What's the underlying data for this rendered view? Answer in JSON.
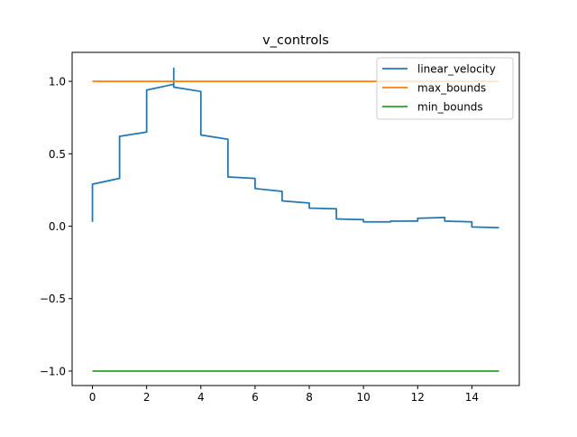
{
  "chart_data": {
    "type": "line",
    "title": "v_controls",
    "xlabel": "",
    "ylabel": "",
    "xlim": [
      -0.75,
      15.75
    ],
    "ylim": [
      -1.1,
      1.2
    ],
    "xticks": [
      0,
      2,
      4,
      6,
      8,
      10,
      12,
      14
    ],
    "yticks": [
      -1.0,
      -0.5,
      0.0,
      0.5,
      1.0
    ],
    "xtick_labels": [
      "0",
      "2",
      "4",
      "6",
      "8",
      "10",
      "12",
      "14"
    ],
    "ytick_labels": [
      "−1.0",
      "−0.5",
      "0.0",
      "0.5",
      "1.0"
    ],
    "grid": false,
    "legend_position": "top-right",
    "series": [
      {
        "name": "linear_velocity",
        "color": "#1f77b4",
        "x": [
          0,
          0,
          1,
          1,
          2,
          2,
          3,
          3,
          3,
          3,
          3,
          4,
          4,
          5,
          5,
          6,
          6,
          7,
          7,
          8,
          8,
          9,
          9,
          10,
          10,
          11,
          11,
          12,
          12,
          13,
          13,
          14,
          14,
          15
        ],
        "y": [
          0.03,
          0.29,
          0.33,
          0.62,
          0.65,
          0.94,
          0.98,
          1.09,
          0.98,
          1.09,
          0.96,
          0.93,
          0.63,
          0.6,
          0.34,
          0.33,
          0.26,
          0.24,
          0.175,
          0.16,
          0.125,
          0.12,
          0.05,
          0.045,
          0.03,
          0.03,
          0.035,
          0.035,
          0.055,
          0.06,
          0.035,
          0.03,
          -0.005,
          -0.01
        ]
      },
      {
        "name": "max_bounds",
        "color": "#ff7f0e",
        "x": [
          0,
          15
        ],
        "y": [
          1.0,
          1.0
        ]
      },
      {
        "name": "min_bounds",
        "color": "#2ca02c",
        "x": [
          0,
          15
        ],
        "y": [
          -1.0,
          -1.0
        ]
      }
    ]
  }
}
